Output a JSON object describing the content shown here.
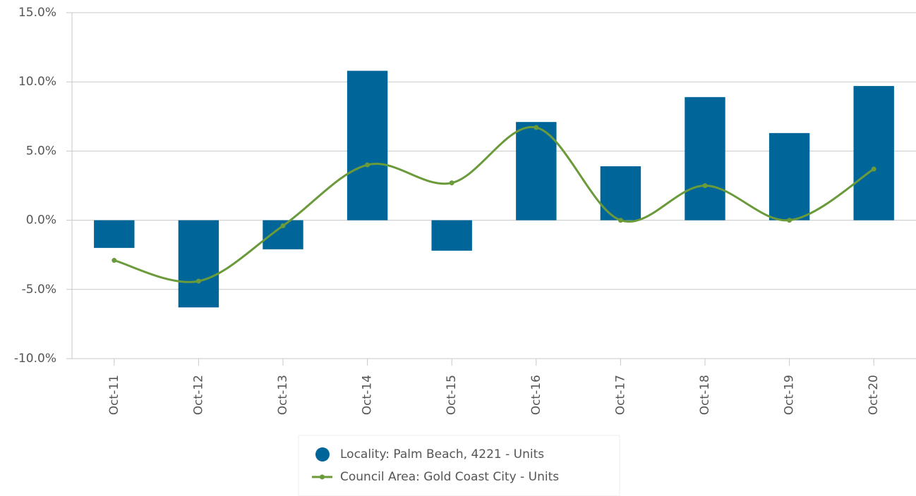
{
  "chart_data": {
    "type": "bar_line",
    "categories": [
      "Oct-11",
      "Oct-12",
      "Oct-13",
      "Oct-14",
      "Oct-15",
      "Oct-16",
      "Oct-17",
      "Oct-18",
      "Oct-19",
      "Oct-20"
    ],
    "series": [
      {
        "name": "Locality: Palm Beach, 4221 - Units",
        "type": "bar",
        "color": "#006699",
        "values": [
          -2.0,
          -6.3,
          -2.1,
          10.8,
          -2.2,
          7.1,
          3.9,
          8.9,
          6.3,
          9.7
        ]
      },
      {
        "name": "Council Area: Gold Coast City - Units",
        "type": "line",
        "smooth": true,
        "color": "#6a9a3a",
        "values": [
          -2.9,
          -4.4,
          -0.4,
          4.0,
          2.7,
          6.7,
          0.0,
          2.5,
          0.0,
          3.7
        ]
      }
    ],
    "ylim": [
      -10,
      15
    ],
    "yticks": [
      {
        "value": -10,
        "label": "-10.0%"
      },
      {
        "value": -5,
        "label": "-5.0%"
      },
      {
        "value": 0,
        "label": "0.0%"
      },
      {
        "value": 5,
        "label": "5.0%"
      },
      {
        "value": 10,
        "label": "10.0%"
      },
      {
        "value": 15,
        "label": "15.0%"
      }
    ],
    "grid": true,
    "legend": "bottom"
  }
}
